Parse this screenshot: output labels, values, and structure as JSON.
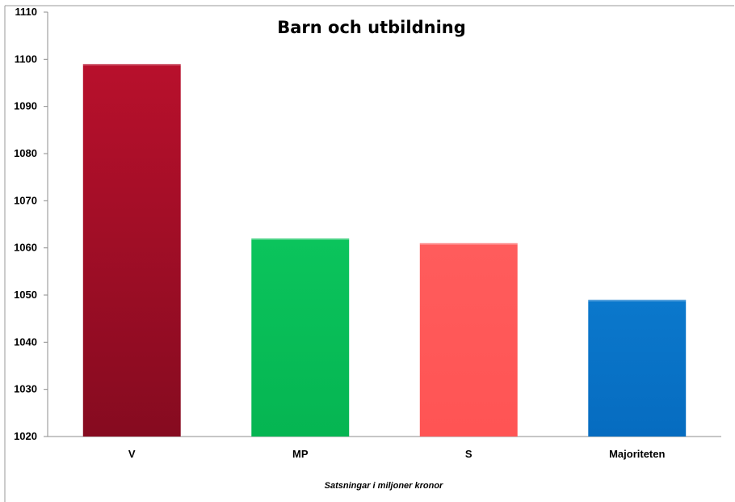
{
  "chart_data": {
    "type": "bar",
    "title": "Barn och utbildning",
    "xlabel": "Satsningar i miljoner kronor",
    "ylabel": "",
    "categories": [
      "V",
      "MP",
      "S",
      "Majoriteten"
    ],
    "values": [
      1099,
      1062,
      1061,
      1049
    ],
    "ylim": [
      1020,
      1110
    ],
    "yticks": [
      1020,
      1030,
      1040,
      1050,
      1060,
      1070,
      1080,
      1090,
      1100,
      1110
    ],
    "colors": [
      "#a8142c",
      "#07bf58",
      "#ff5a5a",
      "#0a74c8"
    ],
    "grid": false,
    "legend": "none"
  }
}
